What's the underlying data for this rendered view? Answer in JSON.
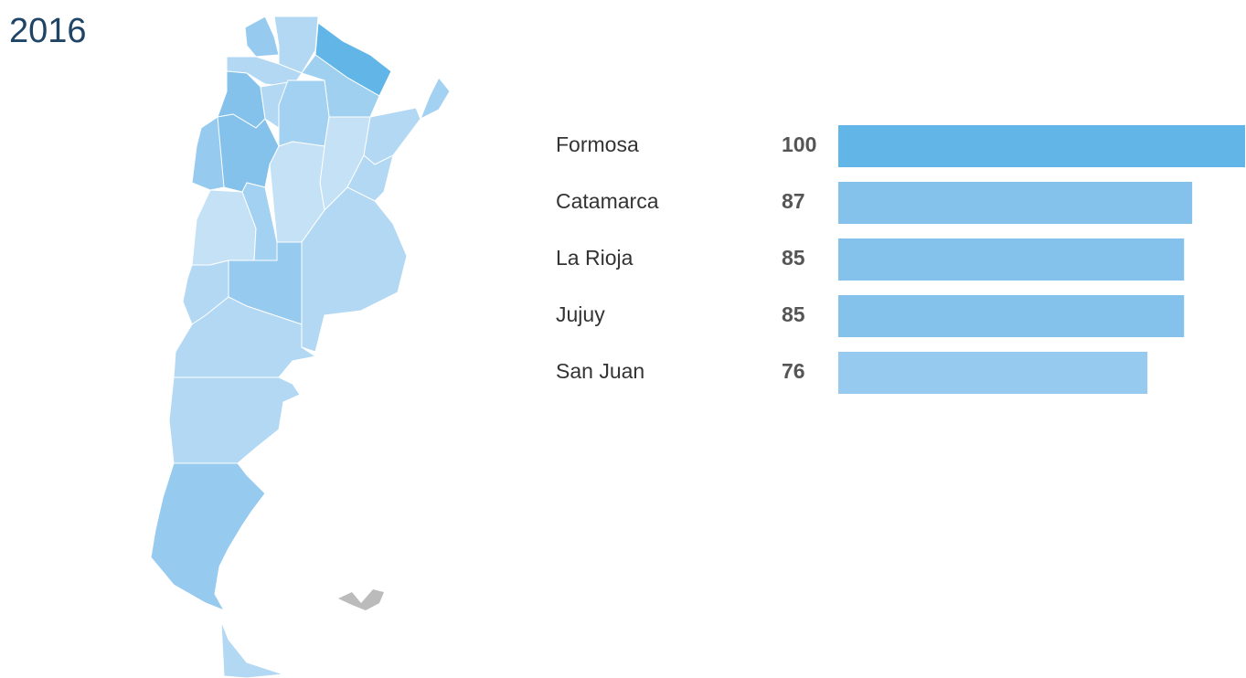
{
  "chart_data": {
    "type": "bar",
    "title": "2016",
    "categories": [
      "Formosa",
      "Catamarca",
      "La Rioja",
      "Jujuy",
      "San Juan"
    ],
    "values": [
      100,
      87,
      85,
      85,
      76
    ],
    "colors": [
      "#62b6e7",
      "#84c2ec",
      "#84c2ec",
      "#84c2ec",
      "#96caee"
    ]
  }
}
